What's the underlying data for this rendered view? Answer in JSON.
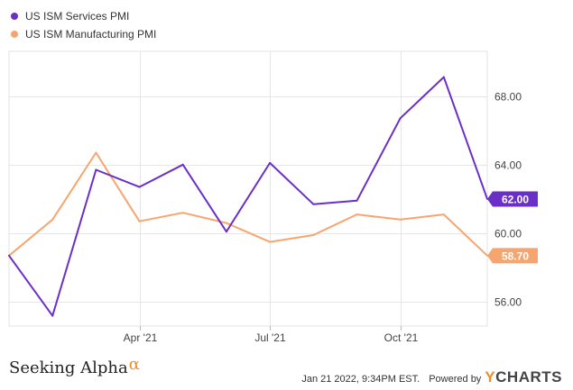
{
  "legend": [
    {
      "label": "US ISM Services PMI",
      "color": "#6a2fc7"
    },
    {
      "label": "US ISM Manufacturing PMI",
      "color": "#f7a56f"
    }
  ],
  "footer": {
    "brand": "Seeking Alpha",
    "brand_symbol": "α",
    "timestamp": "Jan 21 2022, 9:34PM EST.",
    "powered_by": "Powered by",
    "provider_y": "Y",
    "provider_rest": "CHARTS"
  },
  "chart_data": {
    "type": "line",
    "x": [
      "2021-01",
      "2021-02",
      "2021-03",
      "2021-04",
      "2021-05",
      "2021-06",
      "2021-07",
      "2021-08",
      "2021-09",
      "2021-10",
      "2021-11",
      "2021-12"
    ],
    "xticks": [
      {
        "x": "2021-04",
        "label": "Apr '21"
      },
      {
        "x": "2021-07",
        "label": "Jul '21"
      },
      {
        "x": "2021-10",
        "label": "Oct '21"
      }
    ],
    "ylim": [
      54.6,
      70.6
    ],
    "yticks": [
      56.0,
      60.0,
      64.0,
      68.0
    ],
    "ytick_labels": [
      "56.00",
      "60.00",
      "64.00",
      "68.00"
    ],
    "grid": true,
    "series": [
      {
        "name": "US ISM Services PMI",
        "color": "#6a2fc7",
        "values": [
          58.7,
          55.2,
          63.7,
          62.7,
          64.0,
          60.1,
          64.1,
          61.7,
          61.9,
          66.7,
          69.1,
          62.0
        ],
        "end_label": "62.00"
      },
      {
        "name": "US ISM Manufacturing PMI",
        "color": "#f7a56f",
        "values": [
          58.7,
          60.8,
          64.7,
          60.7,
          61.2,
          60.6,
          59.5,
          59.9,
          61.1,
          60.8,
          61.1,
          58.7
        ],
        "end_label": "58.70"
      }
    ]
  }
}
